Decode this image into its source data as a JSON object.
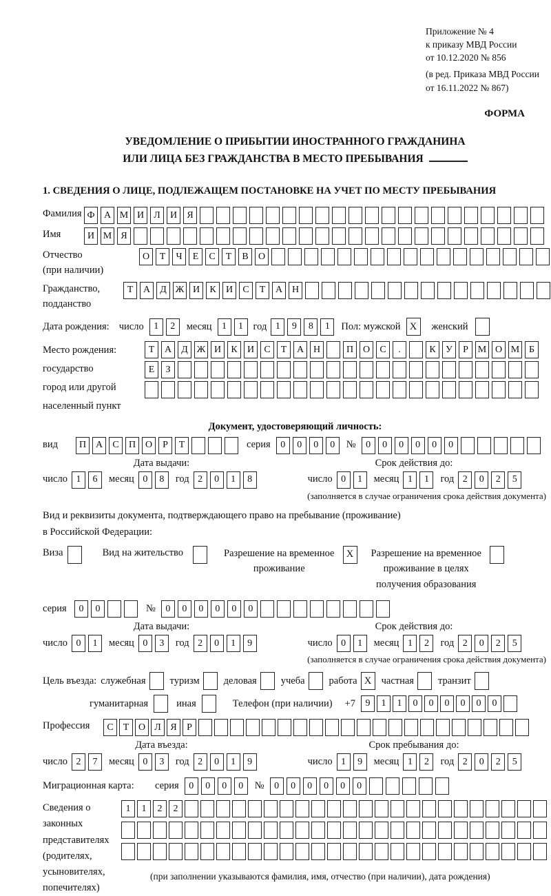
{
  "header": {
    "appendix_lines": [
      "Приложение № 4",
      "к приказу МВД России",
      "от 10.12.2020 № 856"
    ],
    "revision_lines": [
      "(в ред. Приказа МВД России",
      "от 16.11.2022 № 867)"
    ],
    "form_label": "ФОРМА"
  },
  "title": {
    "line1": "УВЕДОМЛЕНИЕ О ПРИБЫТИИ ИНОСТРАННОГО ГРАЖДАНИНА",
    "line2": "ИЛИ ЛИЦА БЕЗ ГРАЖДАНСТВА В МЕСТО ПРЕБЫВАНИЯ"
  },
  "section1_title": "1. СВЕДЕНИЯ О ЛИЦЕ, ПОДЛЕЖАЩЕМ ПОСТАНОВКЕ НА УЧЕТ ПО МЕСТУ ПРЕБЫВАНИЯ",
  "labels": {
    "surname": "Фамилия",
    "name": "Имя",
    "patronymic": "Отчество",
    "patronymic_note": "(при наличии)",
    "citizenship1": "Гражданство,",
    "citizenship2": "подданство",
    "birthdate": "Дата рождения:",
    "day": "число",
    "month": "месяц",
    "year": "год",
    "sex_male": "Пол: мужской",
    "sex_female": "женский",
    "birthplace": "Место рождения:",
    "birthplace_state": "государство",
    "birthplace_city1": "город или другой",
    "birthplace_city2": "населенный пункт",
    "identity_doc": "Документ, удостоверяющий личность:",
    "doc_type": "вид",
    "series": "серия",
    "number": "№",
    "issue_date": "Дата выдачи:",
    "valid_until": "Срок действия до:",
    "valid_note": "(заполняется в случае ограничения срока действия документа)",
    "residence_doc_line1": "Вид и реквизиты документа, подтверждающего право на пребывание (проживание)",
    "residence_doc_line2": "в Российской Федерации:",
    "visa": "Виза",
    "residence_permit": "Вид на жительство",
    "temp_residence_line1": "Разрешение на временное",
    "temp_residence_line2": "проживание",
    "temp_residence_edu_line1": "Разрешение на временное",
    "temp_residence_edu_line2": "проживание в целях",
    "temp_residence_edu_line3": "получения образования",
    "purpose": "Цель въезда:",
    "purpose_official": "служебная",
    "purpose_tourism": "туризм",
    "purpose_business": "деловая",
    "purpose_study": "учеба",
    "purpose_work": "работа",
    "purpose_private": "частная",
    "purpose_transit": "транзит",
    "purpose_humanitarian": "гуманитарная",
    "purpose_other": "иная",
    "phone": "Телефон (при наличии)",
    "phone_prefix": "+7",
    "profession": "Профессия",
    "entry_date": "Дата въезда:",
    "stay_until": "Срок пребывания до:",
    "migration_card": "Миграционная карта:",
    "rep_line1": "Сведения о",
    "rep_line2": "законных",
    "rep_line3": "представителях",
    "rep_line4": "(родителях,",
    "rep_line5": "усыновителях,",
    "rep_line6": "попечителях)",
    "rep_note": "(при заполнении указываются фамилия, имя, отчество (при наличии), дата рождения)"
  },
  "cells": {
    "surname": {
      "count": 28,
      "value": "ФАМИЛИЯ"
    },
    "name": {
      "count": 28,
      "value": "ИМЯ"
    },
    "patronymic": {
      "count": 25,
      "value": "ОТЧЕСТВО"
    },
    "citizenship": {
      "count": 26,
      "value": "ТАДЖИКИСТАН"
    },
    "birth_day": {
      "count": 2,
      "value": "12"
    },
    "birth_month": {
      "count": 2,
      "value": "11"
    },
    "birth_year": {
      "count": 4,
      "value": "1981"
    },
    "birthplace_row1": {
      "count": 24,
      "value": "ТАДЖИКИСТАН ПОС. КУРМОМБ"
    },
    "birthplace_row2": {
      "count": 24,
      "value": "ЕЗ"
    },
    "birthplace_row3": {
      "count": 24,
      "value": ""
    },
    "doc_type": {
      "count": 10,
      "value": "ПАСПОРТ"
    },
    "doc_series": {
      "count": 4,
      "value": "0000"
    },
    "doc_number": {
      "count": 11,
      "value": "000000"
    },
    "doc_issue_day": {
      "count": 2,
      "value": "16"
    },
    "doc_issue_month": {
      "count": 2,
      "value": "08"
    },
    "doc_issue_year": {
      "count": 4,
      "value": "2018"
    },
    "doc_valid_day": {
      "count": 2,
      "value": "01"
    },
    "doc_valid_month": {
      "count": 2,
      "value": "11"
    },
    "doc_valid_year": {
      "count": 4,
      "value": "2025"
    },
    "res_series": {
      "count": 4,
      "value": "00"
    },
    "res_number": {
      "count": 14,
      "value": "000000"
    },
    "res_issue_day": {
      "count": 2,
      "value": "01"
    },
    "res_issue_month": {
      "count": 2,
      "value": "03"
    },
    "res_issue_year": {
      "count": 4,
      "value": "2019"
    },
    "res_valid_day": {
      "count": 2,
      "value": "01"
    },
    "res_valid_month": {
      "count": 2,
      "value": "12"
    },
    "res_valid_year": {
      "count": 4,
      "value": "2025"
    },
    "phone": {
      "count": 10,
      "value": "911000000"
    },
    "profession": {
      "count": 27,
      "value": "СТОЛЯР"
    },
    "entry_day": {
      "count": 2,
      "value": "27"
    },
    "entry_month": {
      "count": 2,
      "value": "03"
    },
    "entry_year": {
      "count": 4,
      "value": "2019"
    },
    "stay_day": {
      "count": 2,
      "value": "19"
    },
    "stay_month": {
      "count": 2,
      "value": "12"
    },
    "stay_year": {
      "count": 4,
      "value": "2025"
    },
    "mig_series": {
      "count": 4,
      "value": "0000"
    },
    "mig_number": {
      "count": 11,
      "value": "000000"
    },
    "rep_row1": {
      "count": 27,
      "value": "1122"
    },
    "rep_row2": {
      "count": 27,
      "value": ""
    },
    "rep_row3": {
      "count": 27,
      "value": ""
    }
  },
  "checkboxes": {
    "male": "X",
    "female": "",
    "visa": "",
    "residence_permit": "",
    "temp_residence": "X",
    "temp_residence_edu": "",
    "official": "",
    "tourism": "",
    "business": "",
    "study": "",
    "work": "X",
    "private": "",
    "transit": "",
    "humanitarian": "",
    "other": ""
  }
}
